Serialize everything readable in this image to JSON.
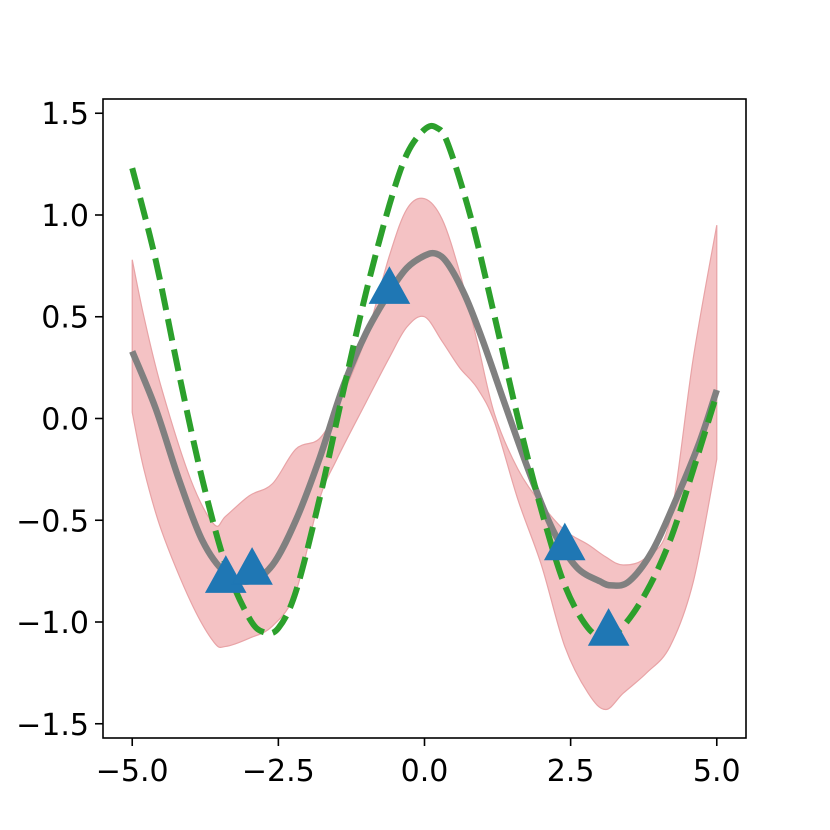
{
  "chart_data": {
    "type": "line",
    "title": "",
    "xlabel": "",
    "ylabel": "",
    "xlim": [
      -5.5,
      5.5
    ],
    "ylim": [
      -1.57,
      1.57
    ],
    "grid": false,
    "legend": "none",
    "x_ticks": [
      {
        "value": -5.0,
        "label": "−5.0"
      },
      {
        "value": -2.5,
        "label": "−2.5"
      },
      {
        "value": 0.0,
        "label": "0.0"
      },
      {
        "value": 2.5,
        "label": "2.5"
      },
      {
        "value": 5.0,
        "label": "5.0"
      }
    ],
    "y_ticks": [
      {
        "value": -1.5,
        "label": "−1.5"
      },
      {
        "value": -1.0,
        "label": "−1.0"
      },
      {
        "value": -0.5,
        "label": "−0.5"
      },
      {
        "value": 0.0,
        "label": "0.0"
      },
      {
        "value": 0.5,
        "label": "0.5"
      },
      {
        "value": 1.0,
        "label": "1.0"
      },
      {
        "value": 1.5,
        "label": "1.5"
      }
    ],
    "series": [
      {
        "kind": "band",
        "color": "#f4c2c4",
        "edge_color": "#e8a3a6",
        "x": [
          -5.0,
          -4.8,
          -4.5,
          -4.0,
          -3.6,
          -3.4,
          -3.0,
          -2.6,
          -2.2,
          -1.8,
          -1.5,
          -1.0,
          -0.6,
          -0.3,
          0.0,
          0.3,
          0.6,
          0.9,
          1.2,
          1.6,
          2.0,
          2.4,
          2.8,
          3.1,
          3.4,
          3.8,
          4.2,
          4.6,
          5.0
        ],
        "upper": [
          0.78,
          0.5,
          0.15,
          -0.3,
          -0.52,
          -0.48,
          -0.38,
          -0.32,
          -0.15,
          -0.1,
          0.05,
          0.4,
          0.8,
          1.03,
          1.08,
          0.98,
          0.72,
          0.38,
          0.02,
          -0.25,
          -0.42,
          -0.55,
          -0.62,
          -0.68,
          -0.72,
          -0.68,
          -0.5,
          0.3,
          0.95
        ],
        "lower": [
          0.03,
          -0.25,
          -0.55,
          -0.9,
          -1.1,
          -1.12,
          -1.08,
          -1.02,
          -0.85,
          -0.4,
          -0.2,
          0.08,
          0.3,
          0.45,
          0.5,
          0.38,
          0.25,
          0.15,
          -0.02,
          -0.4,
          -0.72,
          -1.12,
          -1.35,
          -1.43,
          -1.35,
          -1.25,
          -1.12,
          -0.8,
          -0.2
        ]
      },
      {
        "kind": "line",
        "style": "solid",
        "color": "#808080",
        "x": [
          -5.0,
          -4.6,
          -4.2,
          -3.8,
          -3.4,
          -3.0,
          -2.6,
          -2.2,
          -1.8,
          -1.4,
          -1.0,
          -0.6,
          -0.3,
          0.0,
          0.2,
          0.4,
          0.7,
          1.0,
          1.4,
          1.8,
          2.2,
          2.6,
          3.0,
          3.2,
          3.5,
          3.9,
          4.3,
          4.7,
          5.0
        ],
        "y": [
          0.33,
          0.05,
          -0.3,
          -0.6,
          -0.76,
          -0.8,
          -0.72,
          -0.5,
          -0.2,
          0.15,
          0.42,
          0.62,
          0.74,
          0.8,
          0.81,
          0.76,
          0.6,
          0.38,
          0.05,
          -0.27,
          -0.55,
          -0.73,
          -0.8,
          -0.82,
          -0.8,
          -0.65,
          -0.4,
          -0.12,
          0.14
        ]
      },
      {
        "kind": "line",
        "style": "dashed",
        "color": "#2ca02c",
        "x": [
          -5.0,
          -4.6,
          -4.2,
          -3.8,
          -3.4,
          -3.0,
          -2.75,
          -2.5,
          -2.2,
          -1.8,
          -1.4,
          -1.0,
          -0.6,
          -0.3,
          0.0,
          0.2,
          0.4,
          0.8,
          1.2,
          1.6,
          2.0,
          2.4,
          2.8,
          3.1,
          3.4,
          3.8,
          4.2,
          4.6,
          5.0
        ],
        "y": [
          1.23,
          0.78,
          0.22,
          -0.3,
          -0.72,
          -0.98,
          -1.05,
          -1.03,
          -0.85,
          -0.4,
          0.12,
          0.62,
          1.05,
          1.3,
          1.42,
          1.43,
          1.35,
          0.98,
          0.5,
          0.0,
          -0.45,
          -0.82,
          -1.03,
          -1.07,
          -1.02,
          -0.85,
          -0.6,
          -0.25,
          0.12
        ]
      },
      {
        "kind": "scatter",
        "marker": "triangle",
        "color": "#1f77b4",
        "x": [
          -3.4,
          -2.95,
          -0.6,
          2.4,
          3.15
        ],
        "y": [
          -0.78,
          -0.74,
          0.64,
          -0.62,
          -1.04
        ]
      }
    ]
  }
}
